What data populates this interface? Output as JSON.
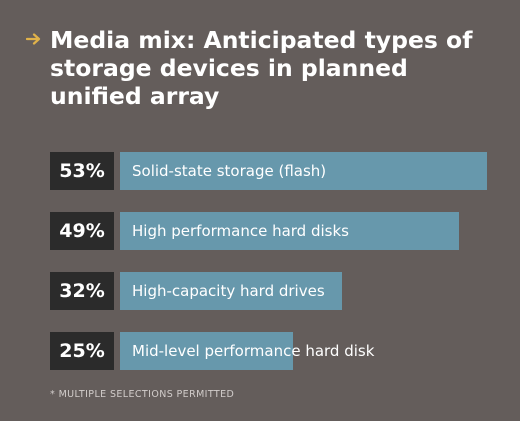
{
  "title": "Media mix: Anticipated types of storage devices in planned unified array",
  "footnote": "* MULTIPLE SELECTIONS PERMITTED",
  "colors": {
    "background": "#645d5b",
    "bar": "#6798ac",
    "percent_box": "#2b2b2b",
    "arrow": "#e0b24a"
  },
  "icons": {
    "title_marker": "arrow-right-icon"
  },
  "chart_data": {
    "type": "bar",
    "orientation": "horizontal",
    "categories": [
      "Solid-state storage (flash)",
      "High performance hard disks",
      "High-capacity hard drives",
      "Mid-level performance hard disk"
    ],
    "values": [
      53,
      49,
      32,
      25
    ],
    "labels": [
      "53%",
      "49%",
      "32%",
      "25%"
    ],
    "unit": "%",
    "title": "Media mix: Anticipated types of storage devices in planned unified array",
    "xlim": [
      0,
      53
    ],
    "grid": false,
    "legend": "none"
  }
}
